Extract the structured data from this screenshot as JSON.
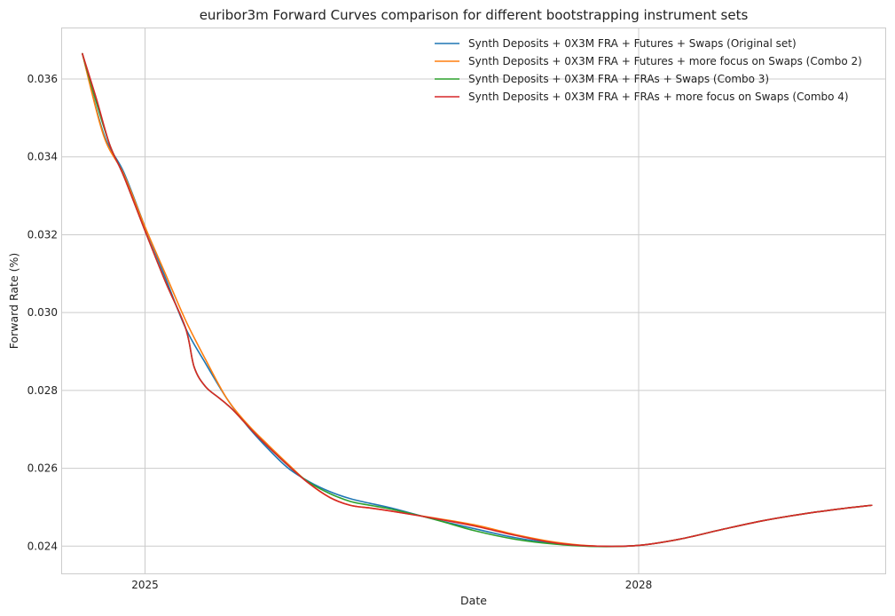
{
  "chart_data": {
    "type": "line",
    "title": "euribor3m Forward Curves comparison for different bootstrapping instrument sets",
    "xlabel": "Date",
    "ylabel": "Forward Rate (%)",
    "x_axis": {
      "kind": "date",
      "range": [
        "2024-07-01",
        "2029-07-01"
      ],
      "ticks": [
        {
          "date": "2025-01-01",
          "label": "2025"
        },
        {
          "date": "2028-01-01",
          "label": "2028"
        }
      ]
    },
    "y_axis": {
      "range": [
        0.0233,
        0.0373
      ],
      "ticks": [
        {
          "value": 0.024,
          "label": "0.024"
        },
        {
          "value": 0.026,
          "label": "0.026"
        },
        {
          "value": 0.028,
          "label": "0.028"
        },
        {
          "value": 0.03,
          "label": "0.030"
        },
        {
          "value": 0.032,
          "label": "0.032"
        },
        {
          "value": 0.034,
          "label": "0.034"
        },
        {
          "value": 0.036,
          "label": "0.036"
        }
      ]
    },
    "grid": true,
    "legend_position": "top-right",
    "series": [
      {
        "name": "Synth Deposits + 0X3M FRA + Futures + Swaps (Original set)",
        "color": "#1f77b4",
        "points": [
          [
            "2024-08-15",
            0.03665
          ],
          [
            "2024-10-01",
            0.0346
          ],
          [
            "2024-11-15",
            0.0336
          ],
          [
            "2025-01-01",
            0.0322
          ],
          [
            "2025-02-15",
            0.0309
          ],
          [
            "2025-04-01",
            0.0296
          ],
          [
            "2025-05-15",
            0.0287
          ],
          [
            "2025-07-01",
            0.0278
          ],
          [
            "2025-08-15",
            0.0271
          ],
          [
            "2025-10-01",
            0.0265
          ],
          [
            "2025-11-15",
            0.026
          ],
          [
            "2026-01-01",
            0.02565
          ],
          [
            "2026-02-15",
            0.0254
          ],
          [
            "2026-04-01",
            0.02522
          ],
          [
            "2026-05-15",
            0.0251
          ],
          [
            "2026-07-01",
            0.02498
          ],
          [
            "2026-10-01",
            0.0247
          ],
          [
            "2027-01-01",
            0.02445
          ],
          [
            "2027-04-01",
            0.02422
          ],
          [
            "2027-07-01",
            0.02407
          ],
          [
            "2027-10-01",
            0.024
          ],
          [
            "2028-01-01",
            0.02402
          ],
          [
            "2028-04-01",
            0.02418
          ],
          [
            "2028-07-01",
            0.02442
          ],
          [
            "2028-10-01",
            0.02465
          ],
          [
            "2029-01-01",
            0.02483
          ],
          [
            "2029-04-01",
            0.02497
          ],
          [
            "2029-06-01",
            0.02505
          ]
        ]
      },
      {
        "name": "Synth Deposits + 0X3M FRA + Futures + more focus on Swaps (Combo 2)",
        "color": "#ff7f0e",
        "points": [
          [
            "2024-08-15",
            0.03665
          ],
          [
            "2024-10-01",
            0.03455
          ],
          [
            "2024-11-15",
            0.03355
          ],
          [
            "2025-01-01",
            0.0322
          ],
          [
            "2025-02-15",
            0.031
          ],
          [
            "2025-04-01",
            0.0298
          ],
          [
            "2025-05-15",
            0.0288
          ],
          [
            "2025-07-01",
            0.0278
          ],
          [
            "2025-08-15",
            0.02715
          ],
          [
            "2025-10-01",
            0.0266
          ],
          [
            "2025-11-15",
            0.0261
          ],
          [
            "2026-01-01",
            0.0256
          ],
          [
            "2026-02-15",
            0.02525
          ],
          [
            "2026-04-01",
            0.02505
          ],
          [
            "2026-05-15",
            0.02498
          ],
          [
            "2026-07-01",
            0.0249
          ],
          [
            "2026-10-01",
            0.02473
          ],
          [
            "2027-01-01",
            0.02455
          ],
          [
            "2027-04-01",
            0.0243
          ],
          [
            "2027-07-01",
            0.0241
          ],
          [
            "2027-10-01",
            0.024
          ],
          [
            "2028-01-01",
            0.02402
          ],
          [
            "2028-04-01",
            0.02418
          ],
          [
            "2028-07-01",
            0.02442
          ],
          [
            "2028-10-01",
            0.02465
          ],
          [
            "2029-01-01",
            0.02483
          ],
          [
            "2029-04-01",
            0.02497
          ],
          [
            "2029-06-01",
            0.02505
          ]
        ]
      },
      {
        "name": "Synth Deposits + 0X3M FRA + FRAs + Swaps (Combo 3)",
        "color": "#2ca02c",
        "points": [
          [
            "2024-08-15",
            0.03665
          ],
          [
            "2024-09-15",
            0.0354
          ],
          [
            "2024-10-15",
            0.0343
          ],
          [
            "2024-11-15",
            0.0335
          ],
          [
            "2025-01-01",
            0.0321
          ],
          [
            "2025-02-15",
            0.0308
          ],
          [
            "2025-04-01",
            0.0296
          ],
          [
            "2025-04-20",
            0.0286
          ],
          [
            "2025-05-15",
            0.0281
          ],
          [
            "2025-06-15",
            0.0278
          ],
          [
            "2025-07-15",
            0.0275
          ],
          [
            "2025-09-01",
            0.0269
          ],
          [
            "2025-10-15",
            0.0264
          ],
          [
            "2025-12-01",
            0.0259
          ],
          [
            "2026-01-01",
            0.02563
          ],
          [
            "2026-02-15",
            0.02535
          ],
          [
            "2026-04-01",
            0.02515
          ],
          [
            "2026-05-15",
            0.02505
          ],
          [
            "2026-07-01",
            0.02495
          ],
          [
            "2026-10-01",
            0.0247
          ],
          [
            "2027-01-01",
            0.0244
          ],
          [
            "2027-04-01",
            0.02418
          ],
          [
            "2027-07-01",
            0.02405
          ],
          [
            "2027-10-01",
            0.02399
          ],
          [
            "2028-01-01",
            0.02402
          ],
          [
            "2028-04-01",
            0.02418
          ],
          [
            "2028-07-01",
            0.02442
          ],
          [
            "2028-10-01",
            0.02465
          ],
          [
            "2029-01-01",
            0.02483
          ],
          [
            "2029-04-01",
            0.02497
          ],
          [
            "2029-06-01",
            0.02505
          ]
        ]
      },
      {
        "name": "Synth Deposits + 0X3M FRA + FRAs + more focus on Swaps (Combo 4)",
        "color": "#d62728",
        "points": [
          [
            "2024-08-15",
            0.03665
          ],
          [
            "2024-09-15",
            0.0355
          ],
          [
            "2024-10-15",
            0.0343
          ],
          [
            "2024-11-15",
            0.0335
          ],
          [
            "2025-01-01",
            0.0321
          ],
          [
            "2025-02-15",
            0.0308
          ],
          [
            "2025-04-01",
            0.0296
          ],
          [
            "2025-04-20",
            0.0286
          ],
          [
            "2025-05-15",
            0.0281
          ],
          [
            "2025-06-15",
            0.0278
          ],
          [
            "2025-07-15",
            0.0275
          ],
          [
            "2025-09-01",
            0.0269
          ],
          [
            "2025-10-15",
            0.0264
          ],
          [
            "2025-12-01",
            0.0259
          ],
          [
            "2026-01-01",
            0.0256
          ],
          [
            "2026-02-15",
            0.02525
          ],
          [
            "2026-04-01",
            0.02505
          ],
          [
            "2026-05-15",
            0.02498
          ],
          [
            "2026-07-01",
            0.0249
          ],
          [
            "2026-10-01",
            0.02472
          ],
          [
            "2027-01-01",
            0.02452
          ],
          [
            "2027-04-01",
            0.02428
          ],
          [
            "2027-07-01",
            0.02408
          ],
          [
            "2027-10-01",
            0.024
          ],
          [
            "2028-01-01",
            0.02402
          ],
          [
            "2028-04-01",
            0.02418
          ],
          [
            "2028-07-01",
            0.02442
          ],
          [
            "2028-10-01",
            0.02465
          ],
          [
            "2029-01-01",
            0.02483
          ],
          [
            "2029-04-01",
            0.02497
          ],
          [
            "2029-06-01",
            0.02505
          ]
        ]
      }
    ]
  }
}
